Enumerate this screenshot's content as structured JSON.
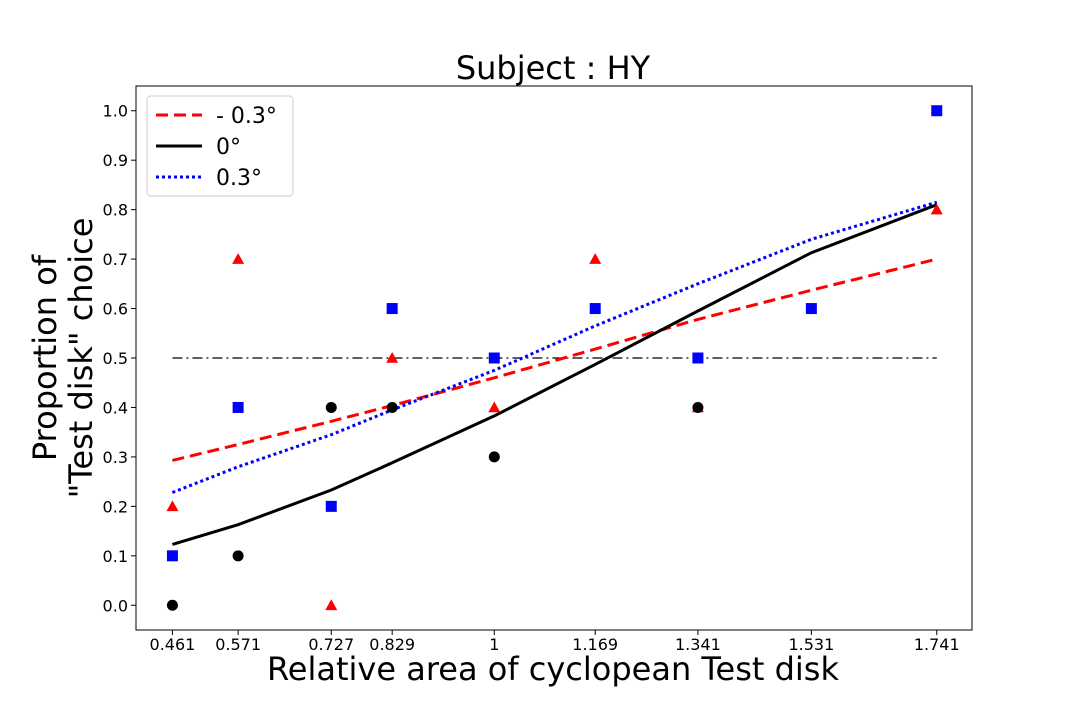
{
  "chart_data": {
    "type": "scatter",
    "title": "Subject : HY",
    "xlabel": "Relative area of cyclopean Test disk",
    "ylabel_lines": [
      "Proportion of",
      "\"Test disk\" choice"
    ],
    "x_ticks": [
      0.461,
      0.571,
      0.727,
      0.829,
      1,
      1.169,
      1.341,
      1.531,
      1.741
    ],
    "x_tick_labels": [
      "0.461",
      "0.571",
      "0.727",
      "0.829",
      "1",
      "1.169",
      "1.341",
      "1.531",
      "1.741"
    ],
    "y_ticks": [
      0,
      0.1,
      0.2,
      0.3,
      0.4,
      0.5,
      0.6,
      0.7,
      0.8,
      0.9,
      1.0
    ],
    "y_tick_labels": [
      "0.0",
      "0.1",
      "0.2",
      "0.3",
      "0.4",
      "0.5",
      "0.6",
      "0.7",
      "0.8",
      "0.9",
      "1.0"
    ],
    "xlim": [
      0.4,
      1.8
    ],
    "ylim": [
      -0.05,
      1.05
    ],
    "grid": false,
    "legend_placement": "top-left",
    "reference_line": {
      "y": 0.5,
      "x_range": [
        0.461,
        1.741
      ],
      "style": "dashdot",
      "color": "#000000"
    },
    "series": [
      {
        "name": "- 0.3°",
        "color": "#ff0000",
        "marker": "triangle",
        "line_style": "dashed",
        "points": [
          [
            0.461,
            0.2
          ],
          [
            0.571,
            0.7
          ],
          [
            0.727,
            0.0
          ],
          [
            0.829,
            0.5
          ],
          [
            1,
            0.4
          ],
          [
            1.169,
            0.7
          ],
          [
            1.341,
            0.4
          ],
          [
            1.741,
            0.8
          ]
        ],
        "fit": [
          [
            0.461,
            0.293
          ],
          [
            0.571,
            0.325
          ],
          [
            0.727,
            0.372
          ],
          [
            0.829,
            0.404
          ],
          [
            1,
            0.46
          ],
          [
            1.169,
            0.518
          ],
          [
            1.341,
            0.578
          ],
          [
            1.531,
            0.637
          ],
          [
            1.741,
            0.7
          ]
        ]
      },
      {
        "name": "0°",
        "color": "#000000",
        "marker": "circle",
        "line_style": "solid",
        "points": [
          [
            0.461,
            0.0
          ],
          [
            0.571,
            0.1
          ],
          [
            0.727,
            0.4
          ],
          [
            0.829,
            0.4
          ],
          [
            1,
            0.3
          ],
          [
            1.341,
            0.4
          ]
        ],
        "fit": [
          [
            0.461,
            0.123
          ],
          [
            0.571,
            0.163
          ],
          [
            0.727,
            0.233
          ],
          [
            0.829,
            0.288
          ],
          [
            1,
            0.383
          ],
          [
            1.169,
            0.487
          ],
          [
            1.341,
            0.595
          ],
          [
            1.531,
            0.713
          ],
          [
            1.741,
            0.81
          ]
        ]
      },
      {
        "name": "0.3°",
        "color": "#0000ff",
        "marker": "square",
        "line_style": "dotted",
        "points": [
          [
            0.461,
            0.1
          ],
          [
            0.571,
            0.4
          ],
          [
            0.727,
            0.2
          ],
          [
            0.829,
            0.6
          ],
          [
            1,
            0.5
          ],
          [
            1.169,
            0.6
          ],
          [
            1.341,
            0.5
          ],
          [
            1.531,
            0.6
          ],
          [
            1.741,
            1.0
          ]
        ],
        "fit": [
          [
            0.461,
            0.228
          ],
          [
            0.571,
            0.28
          ],
          [
            0.727,
            0.345
          ],
          [
            0.829,
            0.395
          ],
          [
            1,
            0.475
          ],
          [
            1.169,
            0.565
          ],
          [
            1.341,
            0.65
          ],
          [
            1.531,
            0.74
          ],
          [
            1.741,
            0.815
          ]
        ]
      }
    ]
  }
}
